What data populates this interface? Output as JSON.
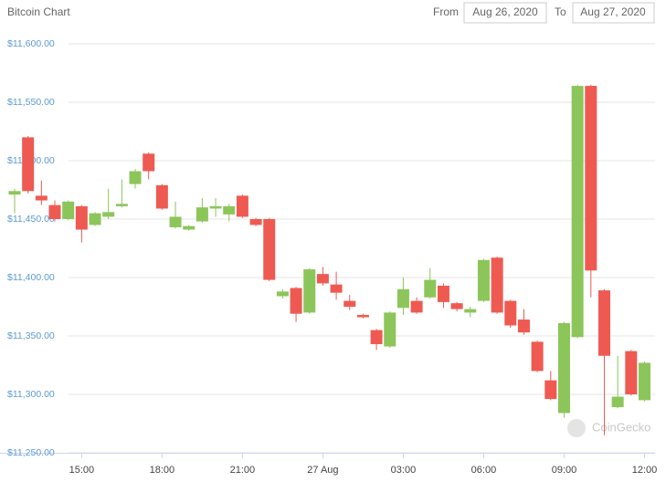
{
  "chart_data": {
    "type": "candlestick",
    "title": "Bitcoin Chart",
    "from_label": "From",
    "from_date": "Aug 26, 2020",
    "to_label": "To",
    "to_date": "Aug 27, 2020",
    "watermark": "CoinGecko",
    "categories": [
      null,
      null,
      null,
      null,
      null,
      "15:00",
      null,
      null,
      null,
      null,
      null,
      "18:00",
      null,
      null,
      null,
      null,
      null,
      "21:00",
      null,
      null,
      null,
      null,
      null,
      "27 Aug",
      null,
      null,
      null,
      null,
      null,
      "03:00",
      null,
      null,
      null,
      null,
      null,
      "06:00",
      null,
      null,
      null,
      null,
      null,
      "09:00",
      null,
      null,
      null,
      null,
      null,
      "12:00"
    ],
    "open": [
      11471,
      11520,
      11470,
      11462,
      11450,
      11461,
      11445,
      11452,
      11461,
      11480,
      11506,
      11479,
      11443,
      11441,
      11448,
      11459,
      11454,
      11470,
      11450,
      11450,
      11384,
      11391,
      11370,
      11403,
      11394,
      11380,
      11368,
      11355,
      11341,
      11374,
      11380,
      11383,
      11393,
      11378,
      11370,
      11380,
      11417,
      11380,
      11364,
      11345,
      11312,
      11284,
      11349,
      11564,
      11389,
      11289,
      11337,
      11295
    ],
    "high": [
      11476,
      11521,
      11483,
      11466,
      11466,
      11462,
      11456,
      11476,
      11484,
      11493,
      11507,
      11480,
      11465,
      11445,
      11468,
      11468,
      11463,
      11471,
      11451,
      11451,
      11390,
      11392,
      11408,
      11409,
      11405,
      11385,
      11369,
      11356,
      11371,
      11400,
      11383,
      11408,
      11395,
      11379,
      11375,
      11416,
      11418,
      11381,
      11373,
      11346,
      11320,
      11362,
      11565,
      11565,
      11390,
      11333,
      11338,
      11328
    ],
    "low": [
      11455,
      11472,
      11462,
      11448,
      11449,
      11430,
      11444,
      11450,
      11460,
      11476,
      11484,
      11458,
      11442,
      11440,
      11447,
      11452,
      11448,
      11451,
      11444,
      11397,
      11382,
      11362,
      11369,
      11393,
      11381,
      11372,
      11365,
      11338,
      11340,
      11368,
      11369,
      11382,
      11374,
      11371,
      11366,
      11379,
      11369,
      11357,
      11351,
      11319,
      11295,
      11280,
      11348,
      11383,
      11265,
      11288,
      11299,
      11294
    ],
    "close": [
      11474,
      11474,
      11466,
      11450,
      11465,
      11441,
      11455,
      11456,
      11463,
      11491,
      11491,
      11459,
      11452,
      11444,
      11460,
      11461,
      11461,
      11452,
      11445,
      11398,
      11388,
      11369,
      11407,
      11395,
      11387,
      11375,
      11366,
      11343,
      11370,
      11390,
      11370,
      11398,
      11379,
      11373,
      11373,
      11415,
      11370,
      11359,
      11353,
      11320,
      11296,
      11361,
      11564,
      11406,
      11333,
      11298,
      11300,
      11327
    ],
    "up_color": "#8cc65a",
    "down_color": "#ee5a52",
    "ylim": [
      11250,
      11600
    ],
    "yticks": [
      {
        "value": 11250,
        "label": "$11,250.00"
      },
      {
        "value": 11300,
        "label": "$11,300.00"
      },
      {
        "value": 11350,
        "label": "$11,350.00"
      },
      {
        "value": 11400,
        "label": "$11,400.00"
      },
      {
        "value": 11450,
        "label": "$11,450.00"
      },
      {
        "value": 11500,
        "label": "$11,500.00"
      },
      {
        "value": 11550,
        "label": "$11,550.00"
      },
      {
        "value": 11600,
        "label": "$11,600.00"
      }
    ],
    "grid": true
  }
}
